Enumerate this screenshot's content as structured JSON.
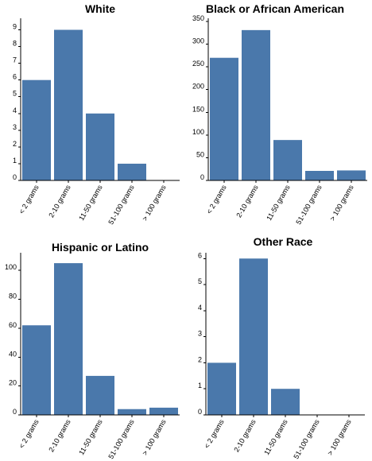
{
  "colors": {
    "bar": "#4a78ab",
    "axis": "#000000"
  },
  "chart_data": [
    {
      "type": "bar",
      "title": "White",
      "categories": [
        "< 2 grams",
        "2-10 grams",
        "11-50 grams",
        "51-100 grams",
        "> 100 grams"
      ],
      "values": [
        6,
        9,
        4,
        1,
        0
      ],
      "ylim": [
        0,
        9.5
      ],
      "yticks": [
        0,
        1,
        2,
        3,
        4,
        5,
        6,
        7,
        8,
        9
      ]
    },
    {
      "type": "bar",
      "title": "Black or African American",
      "categories": [
        "< 2 grams",
        "2-10 grams",
        "11-50 grams",
        "51-100 grams",
        "> 100 grams"
      ],
      "values": [
        270,
        331,
        89,
        21,
        22
      ],
      "ylim": [
        0,
        350
      ],
      "yticks": [
        0,
        50,
        100,
        150,
        200,
        250,
        300,
        350
      ]
    },
    {
      "type": "bar",
      "title": "Hispanic or Latino",
      "categories": [
        "< 2 grams",
        "2-10 grams",
        "11-50 grams",
        "51-100 grams",
        "> 100 grams"
      ],
      "values": [
        62,
        105,
        27,
        4,
        5
      ],
      "ylim": [
        0,
        110
      ],
      "yticks": [
        0,
        20,
        40,
        60,
        80,
        100
      ]
    },
    {
      "type": "bar",
      "title": "Other Race",
      "categories": [
        "< 2 grams",
        "2-10 grams",
        "11-50 grams",
        "51-100 grams",
        "> 100 grams"
      ],
      "values": [
        2,
        6,
        1,
        0,
        0
      ],
      "ylim": [
        0,
        6.1
      ],
      "yticks": [
        0,
        1,
        2,
        3,
        4,
        5,
        6
      ]
    }
  ]
}
